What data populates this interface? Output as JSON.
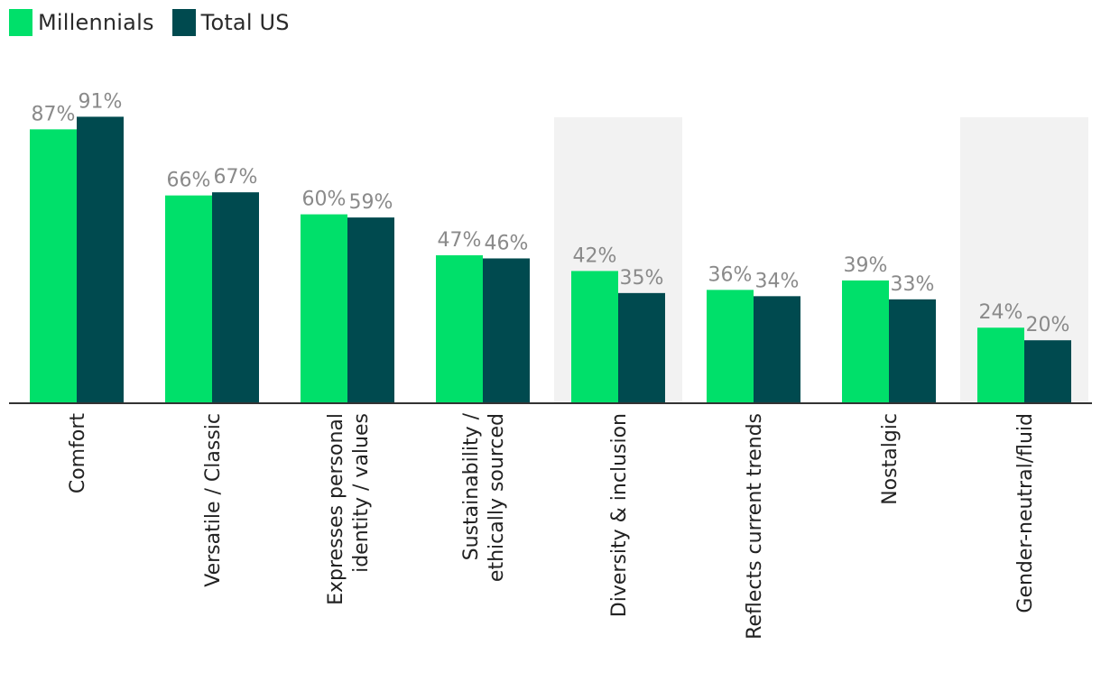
{
  "legend": {
    "items": [
      {
        "label": "Millennials",
        "color": "#00E06A"
      },
      {
        "label": "Total US",
        "color": "#004A4F"
      }
    ]
  },
  "chart_data": {
    "type": "bar",
    "categories": [
      "Comfort",
      "Versatile / Classic",
      "Expresses personal identity / values",
      "Sustainability / ethically sourced",
      "Diversity & inclusion",
      "Reflects current trends",
      "Nostalgic",
      "Gender-neutral/fluid"
    ],
    "category_lines": [
      [
        "Comfort"
      ],
      [
        "Versatile / Classic"
      ],
      [
        "Expresses personal",
        "identity / values"
      ],
      [
        "Sustainability /",
        "ethically sourced"
      ],
      [
        "Diversity & inclusion"
      ],
      [
        "Reflects current trends"
      ],
      [
        "Nostalgic"
      ],
      [
        "Gender-neutral/fluid"
      ]
    ],
    "highlighted_categories": [
      "Diversity & inclusion",
      "Gender-neutral/fluid"
    ],
    "series": [
      {
        "name": "Millennials",
        "color": "#00E06A",
        "values": [
          87,
          66,
          60,
          47,
          42,
          36,
          39,
          24
        ]
      },
      {
        "name": "Total US",
        "color": "#004A4F",
        "values": [
          91,
          67,
          59,
          46,
          35,
          34,
          33,
          20
        ]
      }
    ],
    "value_suffix": "%",
    "ylim": [
      0,
      100
    ],
    "grid": false,
    "legend_position": "top-left"
  }
}
